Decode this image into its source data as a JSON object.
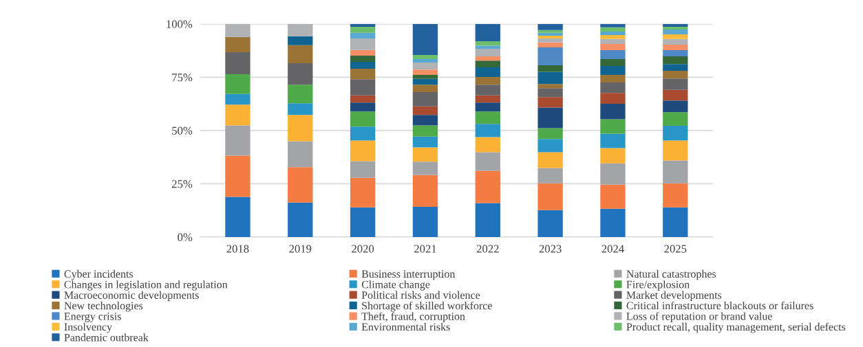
{
  "chart_data": {
    "type": "bar",
    "stacked": true,
    "categories": [
      "2018",
      "2019",
      "2020",
      "2021",
      "2022",
      "2023",
      "2024",
      "2025"
    ],
    "ylim": [
      0,
      100
    ],
    "yticks": [
      {
        "value": 0,
        "label": "0%"
      },
      {
        "value": 25,
        "label": "25%"
      },
      {
        "value": 50,
        "label": "50%"
      },
      {
        "value": 75,
        "label": "75%"
      },
      {
        "value": 100,
        "label": "100%"
      }
    ],
    "grid": "y",
    "legend": "bottom",
    "series": [
      {
        "name": "Cyber incidents",
        "color": "#1f74bd",
        "values": [
          18.8,
          16.2,
          13.9,
          14.2,
          15.9,
          12.6,
          13.3,
          13.9
        ]
      },
      {
        "name": "Business interruption",
        "color": "#f47c42",
        "values": [
          19.4,
          16.6,
          13.9,
          14.9,
          15.2,
          12.6,
          11.3,
          11.3
        ]
      },
      {
        "name": "Natural catastrophes",
        "color": "#a3a4a8",
        "values": [
          14.2,
          12.2,
          7.8,
          6.3,
          8.7,
          7.2,
          10.0,
          10.7
        ]
      },
      {
        "name": "Changes in legislation and regulation",
        "color": "#fbb133",
        "values": [
          9.7,
          12.3,
          9.7,
          6.7,
          7.1,
          7.4,
          7.1,
          9.4
        ]
      },
      {
        "name": "Climate change",
        "color": "#2996c8",
        "values": [
          5.0,
          5.5,
          6.5,
          5.0,
          6.2,
          6.2,
          6.8,
          6.9
        ]
      },
      {
        "name": "Fire/explosion",
        "color": "#4faa4a",
        "values": [
          9.3,
          8.7,
          7.1,
          5.3,
          5.8,
          5.1,
          6.8,
          6.4
        ]
      },
      {
        "name": "Macroeconomic developments",
        "color": "#1f4a7d",
        "values": [
          null,
          null,
          4.2,
          4.9,
          4.2,
          9.7,
          7.2,
          5.5
        ]
      },
      {
        "name": "Political risks and violence",
        "color": "#a84b30",
        "values": [
          null,
          null,
          3.4,
          4.0,
          3.4,
          4.9,
          5.1,
          5.0
        ]
      },
      {
        "name": "Market developments",
        "color": "#646466",
        "values": [
          10.3,
          10.1,
          7.6,
          6.7,
          5.0,
          4.2,
          4.9,
          5.3
        ]
      },
      {
        "name": "New technologies",
        "color": "#9b7435",
        "values": [
          7.2,
          8.4,
          4.9,
          3.5,
          3.6,
          1.9,
          3.6,
          3.6
        ]
      },
      {
        "name": "Shortage of skilled workforce",
        "color": "#0f6491",
        "values": [
          null,
          4.2,
          3.2,
          2.7,
          4.5,
          5.7,
          4.2,
          3.2
        ]
      },
      {
        "name": "Critical infrastructure blackouts or failures",
        "color": "#356839",
        "values": [
          null,
          null,
          2.9,
          1.9,
          3.2,
          3.1,
          3.2,
          3.6
        ]
      },
      {
        "name": "Energy crisis",
        "color": "#4f88c6",
        "values": [
          null,
          null,
          null,
          null,
          null,
          8.4,
          4.2,
          2.9
        ]
      },
      {
        "name": "Theft, fraud, corruption",
        "color": "#f68f63",
        "values": [
          null,
          null,
          2.7,
          2.5,
          2.0,
          2.3,
          2.9,
          2.6
        ]
      },
      {
        "name": "Loss of reputation or brand value",
        "color": "#b1b2b6",
        "values": [
          6.1,
          5.8,
          5.4,
          3.3,
          3.5,
          1.9,
          2.3,
          2.6
        ]
      },
      {
        "name": "Insolvency",
        "color": "#fdbb3c",
        "values": [
          null,
          null,
          null,
          null,
          null,
          1.3,
          1.9,
          2.2
        ]
      },
      {
        "name": "Environmental risks",
        "color": "#5aa8d4",
        "values": [
          null,
          null,
          2.6,
          1.6,
          1.5,
          1.3,
          1.6,
          2.3
        ]
      },
      {
        "name": "Product recall, quality management, serial defects",
        "color": "#6cbe6c",
        "values": [
          null,
          null,
          2.9,
          1.9,
          2.1,
          1.3,
          2.0,
          1.3
        ]
      },
      {
        "name": "Pandemic outbreak",
        "color": "#23609e",
        "values": [
          null,
          null,
          1.3,
          14.6,
          8.1,
          2.9,
          1.6,
          1.3
        ]
      }
    ]
  }
}
